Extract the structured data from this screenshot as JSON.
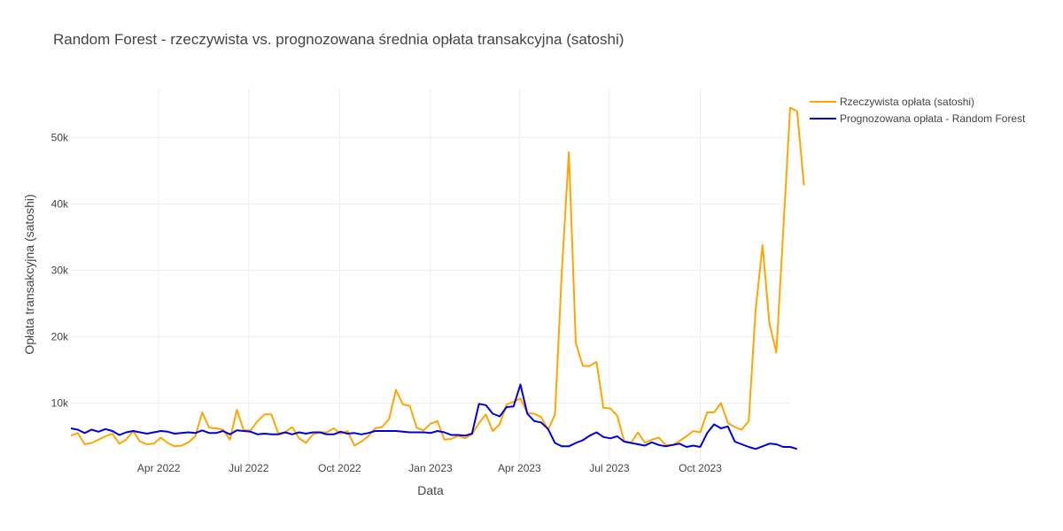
{
  "chart_data": {
    "type": "line",
    "title": "Random Forest - rzeczywista vs. prognozowana średnia opłata transakcyjna (satoshi)",
    "xlabel": "Data",
    "ylabel": "Opłata transakcyjna (satoshi)",
    "x_ticks": [
      {
        "date": "2022-04-01",
        "label": "Apr 2022"
      },
      {
        "date": "2022-07-01",
        "label": "Jul 2022"
      },
      {
        "date": "2022-10-01",
        "label": "Oct 2022"
      },
      {
        "date": "2023-01-01",
        "label": "Jan 2023"
      },
      {
        "date": "2023-04-01",
        "label": "Apr 2023"
      },
      {
        "date": "2023-07-01",
        "label": "Jul 2023"
      },
      {
        "date": "2023-10-01",
        "label": "Oct 2023"
      }
    ],
    "y_ticks": [
      {
        "value": 10000,
        "label": "10k"
      },
      {
        "value": 20000,
        "label": "20k"
      },
      {
        "value": 30000,
        "label": "30k"
      },
      {
        "value": 40000,
        "label": "40k"
      },
      {
        "value": 50000,
        "label": "50k"
      }
    ],
    "xlim": [
      "2022-01-02",
      "2023-12-31"
    ],
    "ylim": [
      1400,
      57400
    ],
    "grid": true,
    "legend_position": "top-right",
    "x_start": "2022-01-02",
    "x_step_days": 7,
    "series": [
      {
        "name": "Rzeczywista opłata (satoshi)",
        "color": "#FFA500",
        "values": [
          5100,
          5500,
          3800,
          4000,
          4500,
          5000,
          5400,
          3900,
          4500,
          5800,
          4200,
          3800,
          3900,
          4800,
          4000,
          3500,
          3600,
          4100,
          5000,
          8600,
          6300,
          6200,
          6000,
          4500,
          9000,
          5900,
          5900,
          7300,
          8300,
          8300,
          5400,
          5600,
          6400,
          4700,
          4000,
          5300,
          5600,
          5600,
          6200,
          5400,
          5800,
          3600,
          4200,
          5000,
          6200,
          6400,
          7600,
          12000,
          9800,
          9600,
          6300,
          5900,
          6900,
          7300,
          4500,
          4600,
          5100,
          4700,
          5300,
          7000,
          8300,
          5800,
          6800,
          9800,
          10200,
          10700,
          8500,
          8400,
          7900,
          6000,
          8300,
          30000,
          47800,
          19100,
          15600,
          15600,
          16200,
          9300,
          9200,
          8100,
          4300,
          4000,
          5600,
          4000,
          4500,
          4800,
          3700,
          3700,
          4300,
          5000,
          5800,
          5600,
          8600,
          8600,
          10000,
          7000,
          6400,
          6000,
          7300,
          24000,
          33800,
          22000,
          17600,
          36000,
          54500,
          54000,
          42800
        ],
        "line_width": 2
      },
      {
        "name": "Prognozowana opłata - Random Forest",
        "color": "#0000DD",
        "values": [
          6200,
          6000,
          5500,
          6000,
          5700,
          6100,
          5800,
          5200,
          5600,
          5800,
          5600,
          5400,
          5600,
          5800,
          5700,
          5400,
          5500,
          5600,
          5500,
          5900,
          5500,
          5500,
          5800,
          5300,
          5900,
          5800,
          5700,
          5300,
          5400,
          5300,
          5300,
          5600,
          5300,
          5600,
          5400,
          5600,
          5600,
          5300,
          5300,
          5700,
          5400,
          5500,
          5300,
          5500,
          5800,
          5800,
          5800,
          5800,
          5700,
          5600,
          5600,
          5600,
          5500,
          5800,
          5600,
          5200,
          5200,
          5100,
          5400,
          9900,
          9700,
          8400,
          8000,
          9400,
          9500,
          12800,
          8400,
          7300,
          7100,
          6100,
          4000,
          3500,
          3500,
          4000,
          4400,
          5100,
          5600,
          4900,
          4700,
          5000,
          4200,
          4000,
          3800,
          3600,
          4100,
          3700,
          3500,
          3700,
          3900,
          3400,
          3600,
          3400,
          5500,
          6800,
          6200,
          6500,
          4200,
          3800,
          3400,
          3100,
          3500,
          3900,
          3800,
          3400,
          3400,
          3100
        ],
        "line_width": 2
      }
    ]
  }
}
